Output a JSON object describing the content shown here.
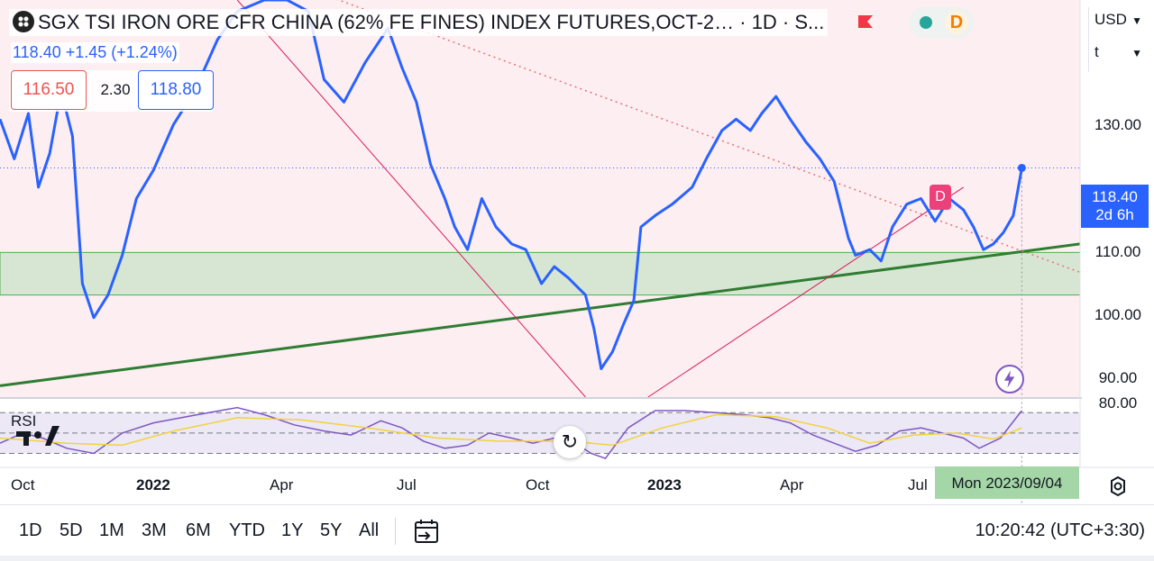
{
  "header": {
    "title": "SGX TSI IRON ORE CFR CHINA (62% FE FINES) INDEX FUTURES,OCT-2… · 1D · S...",
    "last_line": "118.40  +1.45 (+1.24%)",
    "bid": "116.50",
    "spread": "2.30",
    "ask": "118.80",
    "status_letter": "D"
  },
  "selectors": {
    "currency": "USD",
    "unit": "t"
  },
  "price_tag": {
    "price": "118.40",
    "countdown": "2d 6h"
  },
  "marker_label": "D",
  "rsi_label": "RSI",
  "crosshair_date": "Mon 2023/09/04",
  "range_buttons": [
    "1D",
    "5D",
    "1M",
    "3M",
    "6M",
    "YTD",
    "1Y",
    "5Y",
    "All"
  ],
  "clock": "10:20:42 (UTC+3:30)",
  "colors": {
    "price_line": "#2962ff",
    "trendline": "#2e7d32",
    "zone_fill": "#d7e6d2",
    "bg_shade": "#fdeef2",
    "rsi_line": "#7e57c2",
    "rsi_ma": "#f2d33a",
    "accent": "#2962ff"
  },
  "chart_data": {
    "type": "line",
    "title": "SGX TSI IRON ORE CFR CHINA (62% FE FINES) INDEX FUTURES,OCT-2…",
    "y_ticks": [
      "130.00",
      "110.00",
      "100.00",
      "90.00"
    ],
    "x_ticks": [
      "Oct",
      "2022",
      "Apr",
      "Jul",
      "Oct",
      "2023",
      "Apr",
      "Jul"
    ],
    "ylim": [
      78,
      148
    ],
    "x_range": [
      "2021-09-15",
      "2023-10-15"
    ],
    "series": [
      {
        "values": [
          [
            "2021-09-15",
            127
          ],
          [
            "2021-09-25",
            120
          ],
          [
            "2021-10-05",
            128
          ],
          [
            "2021-10-12",
            115
          ],
          [
            "2021-10-20",
            121
          ],
          [
            "2021-10-28",
            132
          ],
          [
            "2021-11-05",
            124
          ],
          [
            "2021-11-12",
            98
          ],
          [
            "2021-11-20",
            92
          ],
          [
            "2021-11-30",
            96
          ],
          [
            "2021-12-10",
            103
          ],
          [
            "2021-12-20",
            113
          ],
          [
            "2022-01-01",
            118
          ],
          [
            "2022-01-15",
            126
          ],
          [
            "2022-01-30",
            132
          ],
          [
            "2022-02-15",
            141
          ],
          [
            "2022-03-01",
            146
          ],
          [
            "2022-03-20",
            148
          ],
          [
            "2022-04-05",
            148
          ],
          [
            "2022-04-20",
            146
          ],
          [
            "2022-05-01",
            134
          ],
          [
            "2022-05-15",
            130
          ],
          [
            "2022-05-30",
            137
          ],
          [
            "2022-06-15",
            143
          ],
          [
            "2022-06-25",
            136
          ],
          [
            "2022-07-05",
            130
          ],
          [
            "2022-07-15",
            119
          ],
          [
            "2022-07-25",
            113
          ],
          [
            "2022-08-01",
            108
          ],
          [
            "2022-08-10",
            104
          ],
          [
            "2022-08-20",
            113
          ],
          [
            "2022-08-30",
            108
          ],
          [
            "2022-09-10",
            105
          ],
          [
            "2022-09-20",
            104
          ],
          [
            "2022-10-01",
            98
          ],
          [
            "2022-10-10",
            101
          ],
          [
            "2022-10-20",
            99
          ],
          [
            "2022-11-01",
            96
          ],
          [
            "2022-11-07",
            90
          ],
          [
            "2022-11-12",
            83
          ],
          [
            "2022-11-20",
            86
          ],
          [
            "2022-11-28",
            91
          ],
          [
            "2022-12-05",
            95
          ],
          [
            "2022-12-10",
            108
          ],
          [
            "2022-12-20",
            110
          ],
          [
            "2023-01-01",
            112
          ],
          [
            "2023-01-15",
            115
          ],
          [
            "2023-01-25",
            120
          ],
          [
            "2023-02-05",
            125
          ],
          [
            "2023-02-15",
            127
          ],
          [
            "2023-02-25",
            125
          ],
          [
            "2023-03-05",
            128
          ],
          [
            "2023-03-15",
            131
          ],
          [
            "2023-03-25",
            127
          ],
          [
            "2023-04-05",
            123
          ],
          [
            "2023-04-15",
            120
          ],
          [
            "2023-04-25",
            116
          ],
          [
            "2023-05-05",
            106
          ],
          [
            "2023-05-10",
            103
          ],
          [
            "2023-05-20",
            104
          ],
          [
            "2023-05-28",
            102
          ],
          [
            "2023-06-05",
            108
          ],
          [
            "2023-06-15",
            112
          ],
          [
            "2023-06-25",
            113
          ],
          [
            "2023-07-05",
            109
          ],
          [
            "2023-07-15",
            113
          ],
          [
            "2023-07-25",
            111
          ],
          [
            "2023-08-01",
            108
          ],
          [
            "2023-08-08",
            104
          ],
          [
            "2023-08-15",
            105
          ],
          [
            "2023-08-22",
            107
          ],
          [
            "2023-08-29",
            110
          ],
          [
            "2023-09-04",
            118.4
          ]
        ]
      }
    ],
    "rsi": {
      "ylim": [
        18,
        80
      ],
      "y_ticks": [
        "80.00"
      ],
      "levels": [
        70,
        50,
        30
      ],
      "values": [
        [
          "2021-09-15",
          40
        ],
        [
          "2021-10-01",
          50
        ],
        [
          "2021-10-15",
          45
        ],
        [
          "2021-11-01",
          35
        ],
        [
          "2021-11-20",
          30
        ],
        [
          "2021-12-10",
          50
        ],
        [
          "2022-01-01",
          60
        ],
        [
          "2022-02-01",
          68
        ],
        [
          "2022-03-01",
          75
        ],
        [
          "2022-03-20",
          68
        ],
        [
          "2022-04-10",
          58
        ],
        [
          "2022-05-01",
          52
        ],
        [
          "2022-05-20",
          48
        ],
        [
          "2022-06-10",
          62
        ],
        [
          "2022-06-25",
          55
        ],
        [
          "2022-07-10",
          42
        ],
        [
          "2022-07-25",
          35
        ],
        [
          "2022-08-10",
          38
        ],
        [
          "2022-08-25",
          50
        ],
        [
          "2022-09-10",
          45
        ],
        [
          "2022-09-25",
          40
        ],
        [
          "2022-10-10",
          45
        ],
        [
          "2022-10-25",
          40
        ],
        [
          "2022-11-05",
          30
        ],
        [
          "2022-11-15",
          25
        ],
        [
          "2022-12-01",
          55
        ],
        [
          "2022-12-20",
          72
        ],
        [
          "2023-01-10",
          72
        ],
        [
          "2023-02-01",
          70
        ],
        [
          "2023-02-20",
          68
        ],
        [
          "2023-03-10",
          65
        ],
        [
          "2023-03-25",
          60
        ],
        [
          "2023-04-10",
          48
        ],
        [
          "2023-04-25",
          40
        ],
        [
          "2023-05-10",
          32
        ],
        [
          "2023-05-25",
          38
        ],
        [
          "2023-06-10",
          52
        ],
        [
          "2023-06-25",
          55
        ],
        [
          "2023-07-10",
          50
        ],
        [
          "2023-07-25",
          45
        ],
        [
          "2023-08-05",
          35
        ],
        [
          "2023-08-20",
          45
        ],
        [
          "2023-09-04",
          72
        ]
      ],
      "ma": [
        [
          "2021-09-15",
          45
        ],
        [
          "2021-11-01",
          40
        ],
        [
          "2021-12-10",
          38
        ],
        [
          "2022-01-15",
          52
        ],
        [
          "2022-03-01",
          65
        ],
        [
          "2022-04-15",
          63
        ],
        [
          "2022-06-01",
          55
        ],
        [
          "2022-07-20",
          45
        ],
        [
          "2022-09-01",
          42
        ],
        [
          "2022-10-20",
          42
        ],
        [
          "2022-11-20",
          38
        ],
        [
          "2022-12-25",
          55
        ],
        [
          "2023-02-01",
          68
        ],
        [
          "2023-03-15",
          66
        ],
        [
          "2023-04-20",
          55
        ],
        [
          "2023-05-20",
          40
        ],
        [
          "2023-06-20",
          48
        ],
        [
          "2023-07-20",
          50
        ],
        [
          "2023-08-15",
          44
        ],
        [
          "2023-09-04",
          55
        ]
      ]
    },
    "support_zone": [
      96,
      103.5
    ],
    "trendlines": [
      {
        "kind": "support",
        "from": [
          "2021-09-15",
          80
        ],
        "to": [
          "2023-10-15",
          105
        ]
      },
      {
        "kind": "down",
        "from": [
          "2022-03-01",
          148
        ],
        "to": [
          "2022-11-01",
          78
        ]
      },
      {
        "kind": "up",
        "from": [
          "2022-12-15",
          78
        ],
        "to": [
          "2023-07-25",
          115
        ]
      },
      {
        "kind": "dotted",
        "from": [
          "2022-01-01",
          160
        ],
        "to": [
          "2023-10-15",
          100
        ]
      }
    ],
    "current_price": 118.4
  }
}
